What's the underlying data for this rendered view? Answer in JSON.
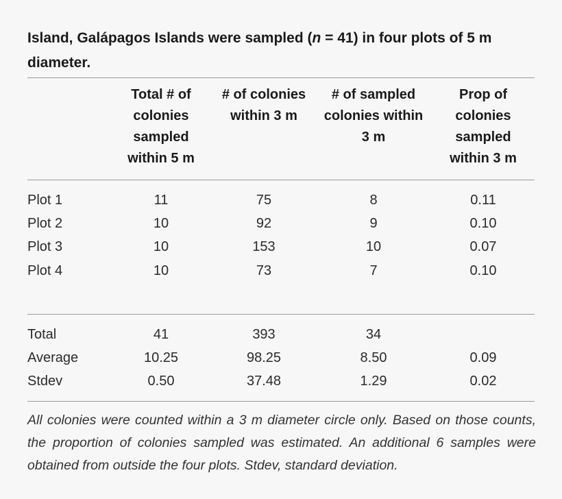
{
  "caption": {
    "part1": "Island, Galápagos Islands were sampled (",
    "n_symbol": "n",
    "part2": " = 41) in four plots of 5 m diameter."
  },
  "headers": [
    [
      "Total # of",
      "colonies",
      "sampled",
      "within 5 m"
    ],
    [
      "# of colonies",
      "within 3 m"
    ],
    [
      "# of sampled",
      "colonies within",
      "3 m"
    ],
    [
      "Prop of",
      "colonies",
      "sampled",
      "within 3 m"
    ]
  ],
  "plots": [
    {
      "label": "Plot 1",
      "total": "11",
      "within3": "75",
      "sampled3": "8",
      "prop": "0.11"
    },
    {
      "label": "Plot 2",
      "total": "10",
      "within3": "92",
      "sampled3": "9",
      "prop": "0.10"
    },
    {
      "label": "Plot 3",
      "total": "10",
      "within3": "153",
      "sampled3": "10",
      "prop": "0.07"
    },
    {
      "label": "Plot 4",
      "total": "10",
      "within3": "73",
      "sampled3": "7",
      "prop": "0.10"
    }
  ],
  "summary": [
    {
      "label": "Total",
      "total": "41",
      "within3": "393",
      "sampled3": "34",
      "prop": ""
    },
    {
      "label": "Average",
      "total": "10.25",
      "within3": "98.25",
      "sampled3": "8.50",
      "prop": "0.09"
    },
    {
      "label": "Stdev",
      "total": "0.50",
      "within3": "37.48",
      "sampled3": "1.29",
      "prop": "0.02"
    }
  ],
  "footnote": "All colonies were counted within a 3 m diameter circle only. Based on those counts, the proportion of colonies sampled was estimated. An additional 6 samples were obtained from outside the four plots. Stdev, standard deviation."
}
